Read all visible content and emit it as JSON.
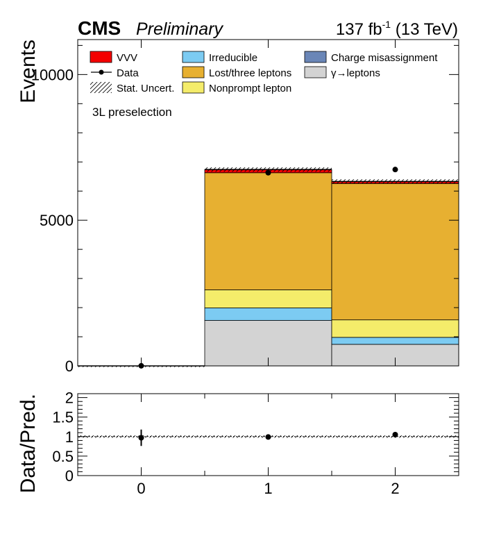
{
  "header": {
    "experiment": "CMS",
    "status": "Preliminary",
    "luminosity": "137 fb",
    "lumi_exponent": "-1",
    "energy": " (13 TeV)"
  },
  "region_label": "3L preselection",
  "legend": [
    {
      "label": "VVV",
      "kind": "fill",
      "color": "#f40000"
    },
    {
      "label": "Irreducible",
      "kind": "fill",
      "color": "#7ccbf2"
    },
    {
      "label": "Charge misassignment",
      "kind": "fill",
      "color": "#6a86b7"
    },
    {
      "label": "Data",
      "kind": "marker",
      "color": "#000000"
    },
    {
      "label": "Lost/three leptons",
      "kind": "fill",
      "color": "#e7b031"
    },
    {
      "label": "γ→leptons",
      "kind": "fill",
      "color": "#d3d3d3"
    },
    {
      "label": "Stat. Uncert.",
      "kind": "hatch",
      "color": "#000000"
    },
    {
      "label": "Nonprompt lepton",
      "kind": "fill",
      "color": "#f4ec6a"
    }
  ],
  "chart_data": [
    {
      "type": "bar",
      "stacked": true,
      "ylabel": "Events",
      "ylim": [
        0,
        11200
      ],
      "yticks": [
        0,
        5000,
        10000
      ],
      "categories": [
        0,
        1,
        2
      ],
      "series": [
        {
          "name": "γ→leptons",
          "color": "#d3d3d3",
          "values": [
            0,
            1560,
            740
          ]
        },
        {
          "name": "Charge misassignment",
          "color": "#6a86b7",
          "values": [
            0,
            0,
            0
          ]
        },
        {
          "name": "Irreducible",
          "color": "#7ccbf2",
          "values": [
            0,
            430,
            240
          ]
        },
        {
          "name": "Nonprompt lepton",
          "color": "#f4ec6a",
          "values": [
            0,
            620,
            600
          ]
        },
        {
          "name": "Lost/three leptons",
          "color": "#e7b031",
          "values": [
            0,
            4020,
            4680
          ]
        },
        {
          "name": "VVV",
          "color": "#f40000",
          "values": [
            0,
            110,
            70
          ]
        }
      ],
      "stat_uncert": [
        5,
        75,
        75
      ],
      "data": {
        "name": "Data",
        "values": [
          4,
          6630,
          6740
        ]
      }
    },
    {
      "type": "scatter",
      "ylabel": "Data/Pred.",
      "ylim": [
        0,
        2.1
      ],
      "yticks": [
        0,
        0.5,
        1,
        1.5,
        2
      ],
      "ytick_labels": [
        "0",
        "0.5",
        "1",
        "1.5",
        "2"
      ],
      "xticks": [
        0,
        1,
        2
      ],
      "xtick_labels": [
        "0",
        "1",
        "2"
      ],
      "xlim": [
        -0.5,
        2.5
      ],
      "reference_line": 1,
      "band": 0.03,
      "points": [
        {
          "x": 0,
          "y": 0.97,
          "err": 0.21
        },
        {
          "x": 1,
          "y": 0.99,
          "err": 0.015
        },
        {
          "x": 2,
          "y": 1.05,
          "err": 0.015
        }
      ]
    }
  ]
}
